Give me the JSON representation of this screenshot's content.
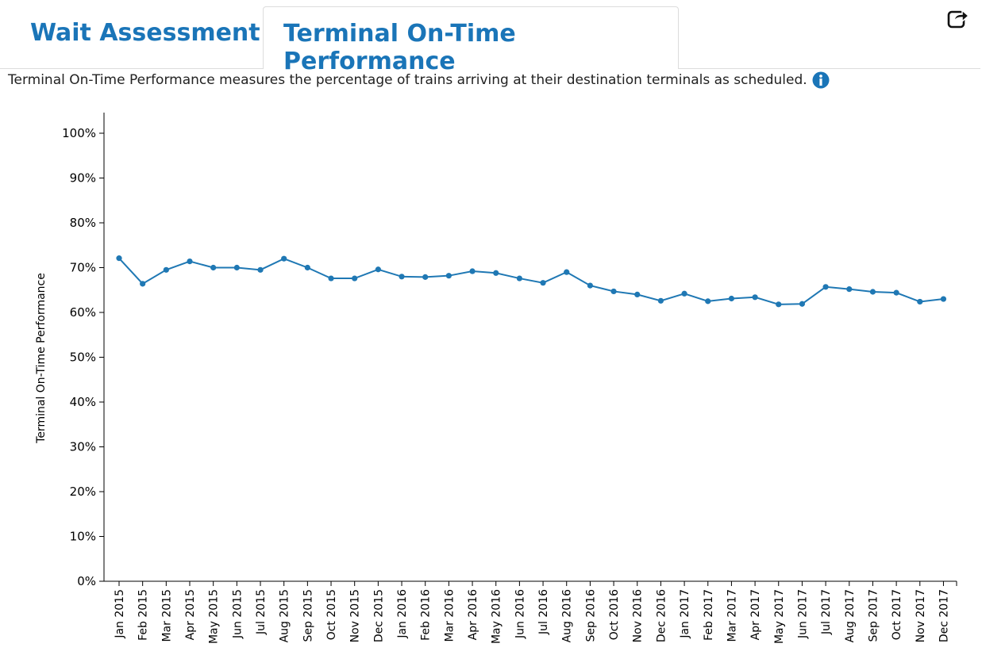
{
  "tabs": {
    "wait_label": "Wait Assessment",
    "terminal_label": "Terminal On-Time Performance",
    "active": "terminal"
  },
  "description": "Terminal On-Time Performance measures the percentage of trains arriving at their destination terminals as scheduled.",
  "icons": {
    "share": "share-icon",
    "info": "info-icon"
  },
  "colors": {
    "accent": "#1a75b8",
    "line": "#1f78b4"
  },
  "chart_data": {
    "type": "line",
    "title": "",
    "xlabel": "",
    "ylabel": "Terminal On-Time Performance",
    "ylim": [
      0,
      100
    ],
    "yticks": [
      "0%",
      "10%",
      "20%",
      "30%",
      "40%",
      "50%",
      "60%",
      "70%",
      "80%",
      "90%",
      "100%"
    ],
    "grid": false,
    "categories": [
      "Jan 2015",
      "Feb 2015",
      "Mar 2015",
      "Apr 2015",
      "May 2015",
      "Jun 2015",
      "Jul 2015",
      "Aug 2015",
      "Sep 2015",
      "Oct 2015",
      "Nov 2015",
      "Dec 2015",
      "Jan 2016",
      "Feb 2016",
      "Mar 2016",
      "Apr 2016",
      "May 2016",
      "Jun 2016",
      "Jul 2016",
      "Aug 2016",
      "Sep 2016",
      "Oct 2016",
      "Nov 2016",
      "Dec 2016",
      "Jan 2017",
      "Feb 2017",
      "Mar 2017",
      "Apr 2017",
      "May 2017",
      "Jun 2017",
      "Jul 2017",
      "Aug 2017",
      "Sep 2017",
      "Oct 2017",
      "Nov 2017",
      "Dec 2017"
    ],
    "series": [
      {
        "values": [
          72.1,
          66.4,
          69.5,
          71.4,
          70.0,
          70.0,
          69.5,
          72.0,
          70.0,
          67.6,
          67.6,
          69.6,
          68.0,
          67.9,
          68.2,
          69.2,
          68.8,
          67.6,
          66.6,
          69.0,
          66.0,
          64.7,
          64.0,
          62.6,
          64.2,
          62.5,
          63.1,
          63.4,
          61.8,
          61.9,
          65.7,
          65.2,
          64.6,
          64.4,
          62.4,
          63.0
        ]
      }
    ]
  }
}
